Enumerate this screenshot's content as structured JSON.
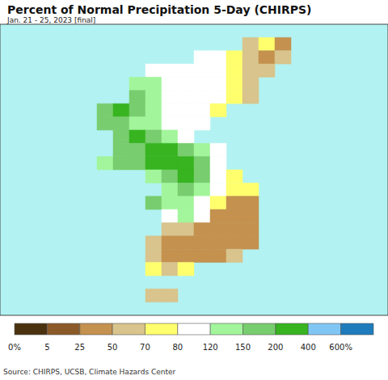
{
  "chart_data": {
    "type": "heatmap",
    "title": "Percent of Normal Precipitation 5-Day (CHIRPS)",
    "subtitle": "Jan. 21 - 25, 2023 [final]",
    "source": "Source: CHIRPS, UCSB, Climate Hazards Center",
    "xlim": [
      121.5,
      133.5
    ],
    "ylim": [
      32.5,
      43.5
    ],
    "tick_labels": false,
    "grid": false,
    "x": [
      124.25,
      124.75,
      125.25,
      125.75,
      126.25,
      126.75,
      127.25,
      127.75,
      128.25,
      128.75,
      129.25,
      129.75,
      130.25,
      130.75
    ],
    "y": [
      42.75,
      42.25,
      41.75,
      41.25,
      40.75,
      40.25,
      39.75,
      39.25,
      38.75,
      38.25,
      37.75,
      37.25,
      36.75,
      36.25,
      35.75,
      35.25,
      34.75,
      34.25,
      33.75,
      33.25
    ],
    "cells": [
      [
        null,
        null,
        null,
        null,
        null,
        null,
        null,
        null,
        null,
        null,
        60,
        75,
        40,
        null
      ],
      [
        null,
        null,
        null,
        null,
        null,
        null,
        null,
        100,
        100,
        75,
        60,
        40,
        60,
        null
      ],
      [
        null,
        null,
        null,
        null,
        100,
        100,
        100,
        100,
        100,
        75,
        60,
        60,
        null,
        null
      ],
      [
        null,
        null,
        null,
        135,
        135,
        100,
        100,
        100,
        100,
        75,
        60,
        null,
        null,
        null
      ],
      [
        null,
        null,
        null,
        175,
        135,
        100,
        100,
        100,
        100,
        75,
        60,
        null,
        null,
        null
      ],
      [
        null,
        175,
        250,
        175,
        135,
        100,
        100,
        100,
        75,
        null,
        null,
        null,
        null,
        null
      ],
      [
        null,
        175,
        175,
        135,
        135,
        100,
        100,
        100,
        null,
        null,
        null,
        null,
        null,
        null
      ],
      [
        null,
        null,
        175,
        250,
        175,
        135,
        100,
        null,
        null,
        null,
        null,
        null,
        null,
        null
      ],
      [
        null,
        null,
        175,
        175,
        250,
        250,
        175,
        135,
        100,
        null,
        null,
        null,
        null,
        null
      ],
      [
        null,
        135,
        175,
        175,
        250,
        250,
        250,
        175,
        100,
        null,
        null,
        null,
        null,
        null
      ],
      [
        null,
        null,
        null,
        null,
        135,
        175,
        250,
        175,
        100,
        75,
        null,
        null,
        null,
        null
      ],
      [
        null,
        null,
        null,
        null,
        null,
        135,
        175,
        135,
        100,
        75,
        75,
        null,
        null,
        null
      ],
      [
        null,
        null,
        null,
        null,
        175,
        135,
        135,
        100,
        75,
        40,
        40,
        null,
        null,
        null
      ],
      [
        null,
        null,
        null,
        null,
        null,
        100,
        135,
        100,
        40,
        40,
        40,
        null,
        null,
        null
      ],
      [
        null,
        null,
        null,
        null,
        null,
        60,
        60,
        40,
        40,
        40,
        40,
        null,
        null,
        null
      ],
      [
        null,
        null,
        null,
        null,
        60,
        40,
        40,
        40,
        40,
        40,
        40,
        null,
        null,
        null
      ],
      [
        null,
        null,
        null,
        null,
        60,
        40,
        40,
        40,
        40,
        60,
        null,
        null,
        null,
        null
      ],
      [
        null,
        null,
        null,
        null,
        75,
        60,
        75,
        null,
        null,
        null,
        null,
        null,
        null,
        null
      ],
      [
        null,
        null,
        null,
        null,
        null,
        null,
        null,
        null,
        null,
        null,
        null,
        null,
        null,
        null
      ],
      [
        null,
        null,
        null,
        null,
        60,
        60,
        null,
        null,
        null,
        null,
        null,
        null,
        null,
        null
      ]
    ],
    "colorbar": {
      "ticks": [
        {
          "value": 0,
          "label": "0%"
        },
        5,
        25,
        50,
        70,
        80,
        120,
        150,
        200,
        400,
        {
          "value": 600,
          "label": "600%"
        }
      ],
      "colors": [
        "#4a3210",
        "#8c5a28",
        "#c4914f",
        "#d8c48c",
        "#ffff6e",
        "#ffffff",
        "#a2f59a",
        "#78cd6e",
        "#37b41f",
        "#80c6f5",
        "#1e7cbc"
      ]
    }
  }
}
